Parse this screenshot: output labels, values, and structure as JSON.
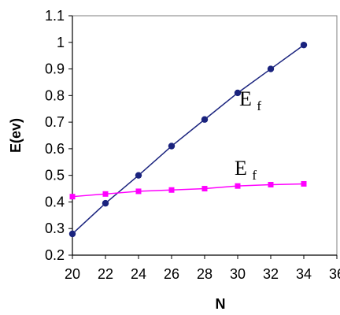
{
  "chart_data": {
    "type": "line",
    "title": "",
    "xlabel": "N",
    "ylabel": "E(ev)",
    "xlim": [
      20,
      36
    ],
    "ylim": [
      0.2,
      1.1
    ],
    "xticks": [
      "20",
      "22",
      "24",
      "26",
      "28",
      "30",
      "32",
      "34",
      "36"
    ],
    "yticks": [
      "0.2",
      "0.3",
      "0.4",
      "0.5",
      "0.6",
      "0.7",
      "0.8",
      "0.9",
      "1",
      "1.1"
    ],
    "grid": false,
    "series": [
      {
        "name": "Ef",
        "label_main": "E",
        "label_sub": "f",
        "color": "#1a237e",
        "marker": "circle",
        "x": [
          20,
          22,
          24,
          26,
          28,
          30,
          32,
          34
        ],
        "values": [
          0.28,
          0.395,
          0.5,
          0.61,
          0.71,
          0.81,
          0.9,
          0.99
        ]
      },
      {
        "name": "Ef",
        "label_main": "E",
        "label_sub": "f",
        "color": "#ff00ff",
        "marker": "square",
        "x": [
          20,
          22,
          24,
          26,
          28,
          30,
          32,
          34
        ],
        "values": [
          0.42,
          0.43,
          0.44,
          0.445,
          0.45,
          0.46,
          0.465,
          0.468
        ]
      }
    ]
  }
}
